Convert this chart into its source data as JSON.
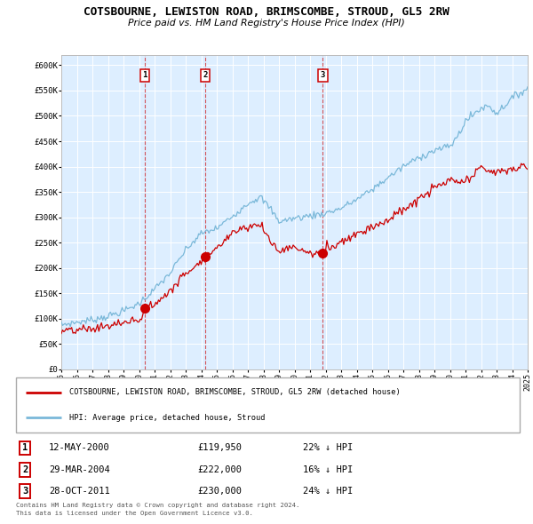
{
  "title": "COTSBOURNE, LEWISTON ROAD, BRIMSCOMBE, STROUD, GL5 2RW",
  "subtitle": "Price paid vs. HM Land Registry's House Price Index (HPI)",
  "hpi_color": "#7ab8d9",
  "price_color": "#cc0000",
  "bg_color": "#ddeeff",
  "sale_dates": [
    "12-MAY-2000",
    "29-MAR-2004",
    "28-OCT-2011"
  ],
  "sale_prices": [
    119950,
    222000,
    230000
  ],
  "sale_labels": [
    "1",
    "2",
    "3"
  ],
  "sale_pct": [
    "22%",
    "16%",
    "24%"
  ],
  "legend_house": "COTSBOURNE, LEWISTON ROAD, BRIMSCOMBE, STROUD, GL5 2RW (detached house)",
  "legend_hpi": "HPI: Average price, detached house, Stroud",
  "footer1": "Contains HM Land Registry data © Crown copyright and database right 2024.",
  "footer2": "This data is licensed under the Open Government Licence v3.0.",
  "ylim": [
    0,
    620000
  ],
  "yticks": [
    0,
    50000,
    100000,
    150000,
    200000,
    250000,
    300000,
    350000,
    400000,
    450000,
    500000,
    550000,
    600000
  ],
  "xlim_start": 1995,
  "xlim_end": 2025
}
